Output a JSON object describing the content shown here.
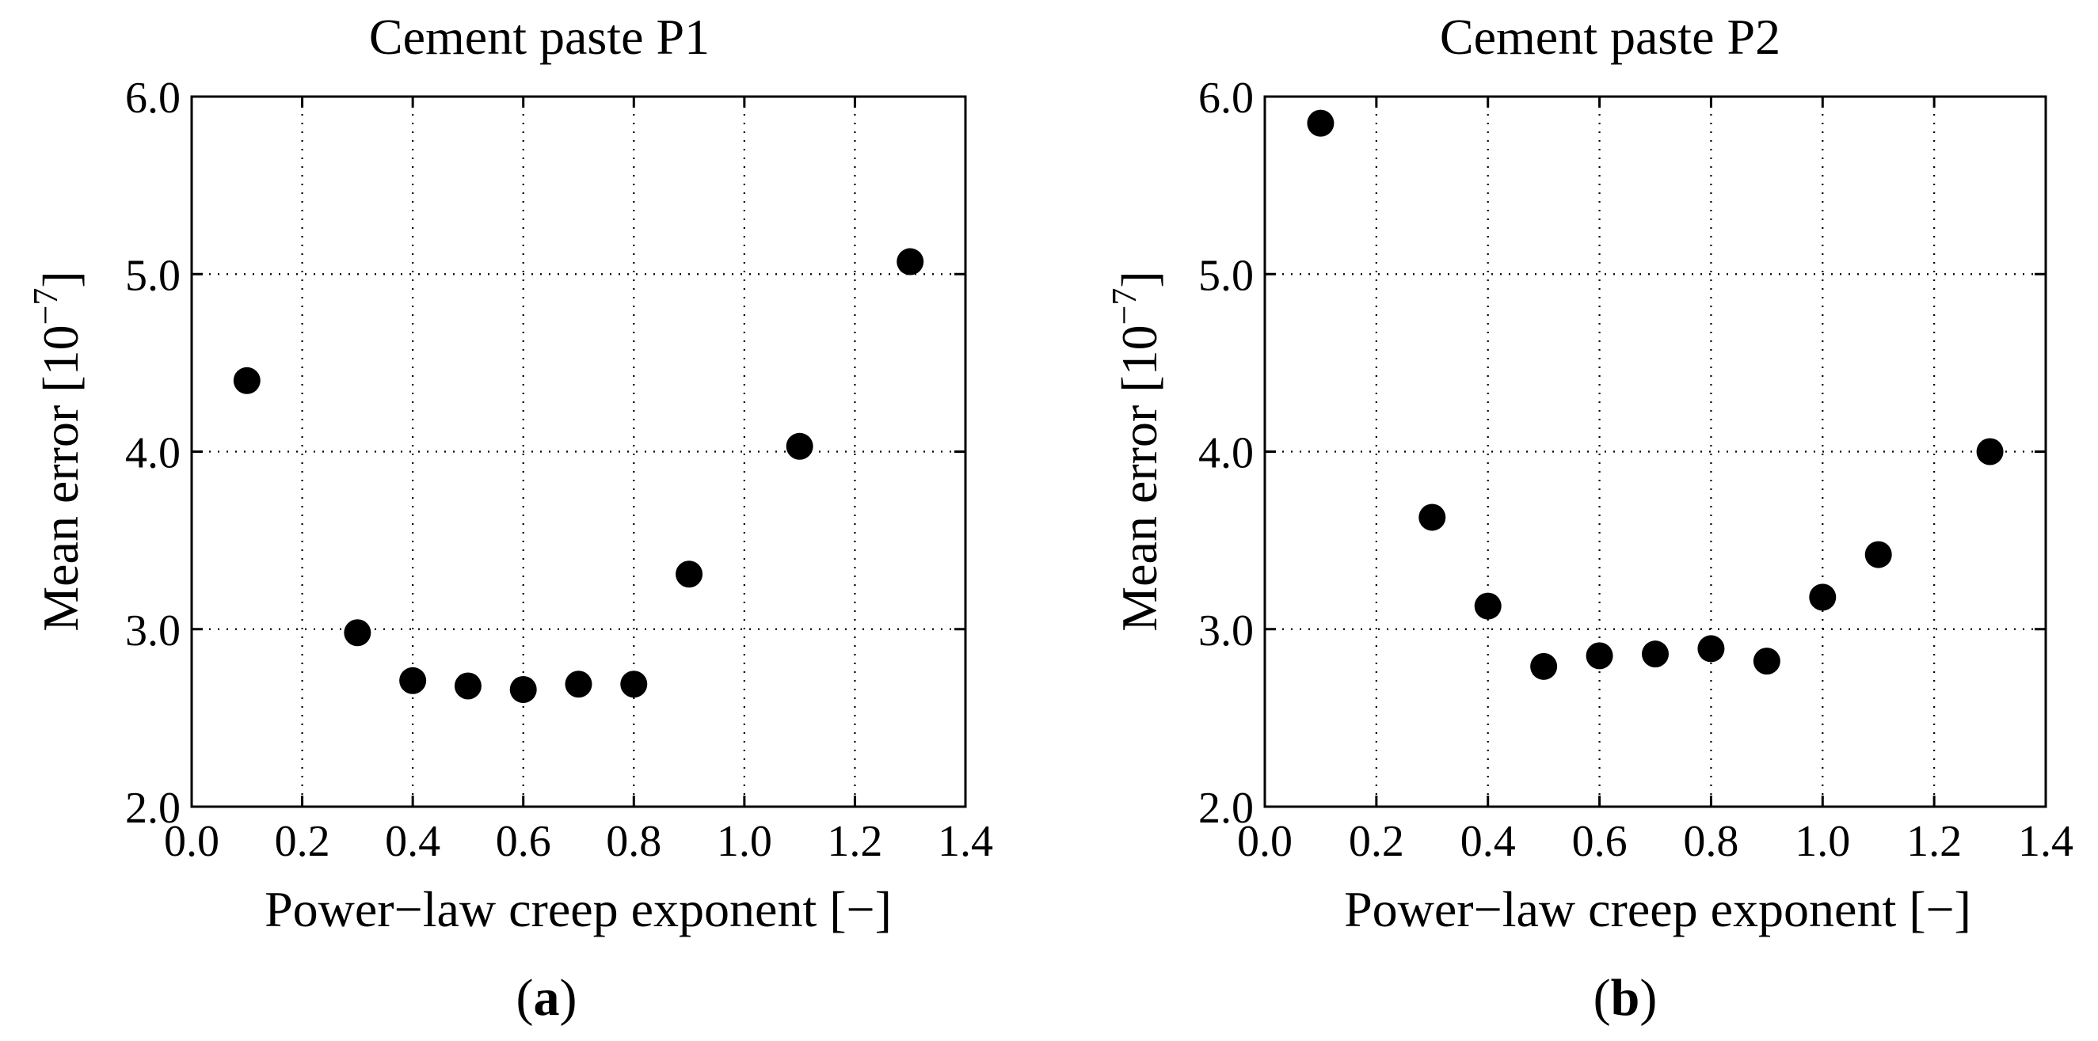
{
  "chart_data": [
    {
      "type": "scatter",
      "title": "Cement paste P1",
      "xlabel": "Power−law creep exponent [−]",
      "ylabel_prefix": "Mean error [10",
      "ylabel_exponent": "−7",
      "ylabel_suffix": "]",
      "xlim": [
        0.0,
        1.4
      ],
      "ylim": [
        2.0,
        6.0
      ],
      "xticks": [
        0.0,
        0.2,
        0.4,
        0.6,
        0.8,
        1.0,
        1.2,
        1.4
      ],
      "xtick_labels": [
        "0.0",
        "0.2",
        "0.4",
        "0.6",
        "0.8",
        "1.0",
        "1.2",
        "1.4"
      ],
      "yticks": [
        2.0,
        3.0,
        4.0,
        5.0,
        6.0
      ],
      "ytick_labels": [
        "2.0",
        "3.0",
        "4.0",
        "5.0",
        "6.0"
      ],
      "grid": true,
      "series": [
        {
          "name": "Mean error",
          "x": [
            0.1,
            0.3,
            0.4,
            0.5,
            0.6,
            0.7,
            0.8,
            0.9,
            1.1,
            1.3
          ],
          "y": [
            4.4,
            2.98,
            2.71,
            2.68,
            2.66,
            2.69,
            2.69,
            3.31,
            4.03,
            5.07
          ]
        }
      ],
      "caption_open": "(",
      "caption_letter": "a",
      "caption_close": ")"
    },
    {
      "type": "scatter",
      "title": "Cement paste P2",
      "xlabel": "Power−law creep exponent [−]",
      "ylabel_prefix": "Mean error [10",
      "ylabel_exponent": "−7",
      "ylabel_suffix": "]",
      "xlim": [
        0.0,
        1.4
      ],
      "ylim": [
        2.0,
        6.0
      ],
      "xticks": [
        0.0,
        0.2,
        0.4,
        0.6,
        0.8,
        1.0,
        1.2,
        1.4
      ],
      "xtick_labels": [
        "0.0",
        "0.2",
        "0.4",
        "0.6",
        "0.8",
        "1.0",
        "1.2",
        "1.4"
      ],
      "yticks": [
        2.0,
        3.0,
        4.0,
        5.0,
        6.0
      ],
      "ytick_labels": [
        "2.0",
        "3.0",
        "4.0",
        "5.0",
        "6.0"
      ],
      "grid": true,
      "series": [
        {
          "name": "Mean error",
          "x": [
            0.1,
            0.3,
            0.4,
            0.5,
            0.6,
            0.7,
            0.8,
            0.9,
            1.0,
            1.1,
            1.3
          ],
          "y": [
            5.85,
            3.63,
            3.13,
            2.79,
            2.85,
            2.86,
            2.89,
            2.82,
            3.18,
            3.42,
            4.0
          ]
        }
      ],
      "caption_open": "(",
      "caption_letter": "b",
      "caption_close": ")"
    }
  ]
}
